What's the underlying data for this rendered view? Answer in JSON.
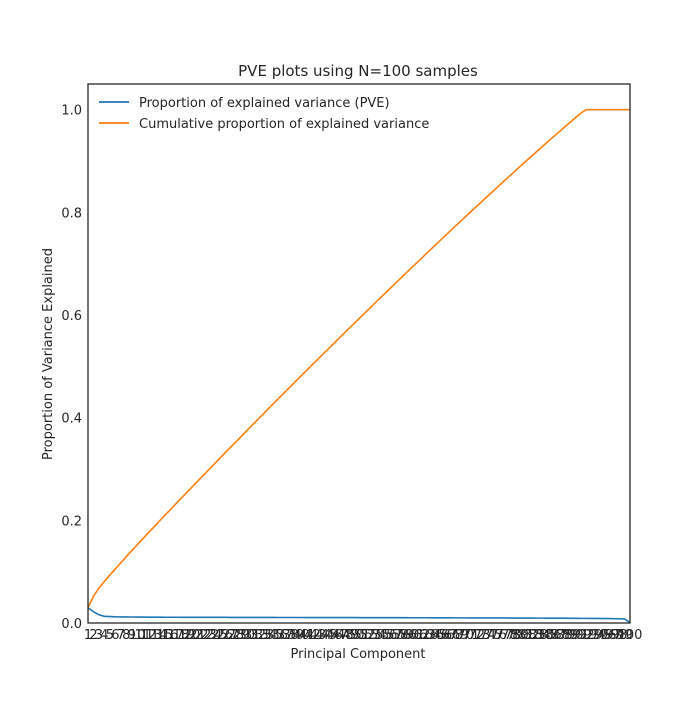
{
  "chart_data": {
    "type": "line",
    "title": "PVE plots using N=100 samples",
    "xlabel": "Principal Component",
    "ylabel": "Proportion of Variance Explained",
    "xlim": [
      1,
      100
    ],
    "ylim": [
      0,
      1.05
    ],
    "yticks": [
      0.0,
      0.2,
      0.4,
      0.6,
      0.8,
      1.0
    ],
    "ytick_labels": [
      "0.0",
      "0.2",
      "0.4",
      "0.6",
      "0.8",
      "1.0"
    ],
    "x": [
      1,
      2,
      3,
      4,
      5,
      6,
      7,
      8,
      9,
      10,
      11,
      12,
      13,
      14,
      15,
      16,
      17,
      18,
      19,
      20,
      21,
      22,
      23,
      24,
      25,
      26,
      27,
      28,
      29,
      30,
      31,
      32,
      33,
      34,
      35,
      36,
      37,
      38,
      39,
      40,
      41,
      42,
      43,
      44,
      45,
      46,
      47,
      48,
      49,
      50,
      51,
      52,
      53,
      54,
      55,
      56,
      57,
      58,
      59,
      60,
      61,
      62,
      63,
      64,
      65,
      66,
      67,
      68,
      69,
      70,
      71,
      72,
      73,
      74,
      75,
      76,
      77,
      78,
      79,
      80,
      81,
      82,
      83,
      84,
      85,
      86,
      87,
      88,
      89,
      90,
      91,
      92,
      93,
      94,
      95,
      96,
      97,
      98,
      99,
      100
    ],
    "legend_position": "upper-left",
    "grid": false,
    "series": [
      {
        "name": "Proportion of explained variance (PVE)",
        "color": "#1f77b4",
        "values": [
          0.03,
          0.022,
          0.016,
          0.013,
          0.0125,
          0.012,
          0.0119,
          0.0118,
          0.0117,
          0.0116,
          0.0115,
          0.0114,
          0.0113,
          0.0113,
          0.0112,
          0.0112,
          0.0112,
          0.0111,
          0.0111,
          0.0111,
          0.0111,
          0.011,
          0.011,
          0.011,
          0.011,
          0.011,
          0.0109,
          0.0109,
          0.0109,
          0.0109,
          0.0109,
          0.0108,
          0.0108,
          0.0108,
          0.0108,
          0.0107,
          0.0107,
          0.0107,
          0.0107,
          0.0107,
          0.0106,
          0.0106,
          0.0106,
          0.0106,
          0.0106,
          0.0105,
          0.0105,
          0.0105,
          0.0105,
          0.0105,
          0.0104,
          0.0104,
          0.0104,
          0.0104,
          0.0103,
          0.0103,
          0.0103,
          0.0103,
          0.0103,
          0.0102,
          0.0102,
          0.0102,
          0.0102,
          0.0101,
          0.0101,
          0.0101,
          0.0101,
          0.01,
          0.01,
          0.01,
          0.0099,
          0.0099,
          0.0099,
          0.0099,
          0.0098,
          0.0098,
          0.0098,
          0.0097,
          0.0097,
          0.0097,
          0.0096,
          0.0096,
          0.0095,
          0.0095,
          0.0094,
          0.0094,
          0.0093,
          0.0093,
          0.0092,
          0.0091,
          0.009,
          0.009,
          0.0089,
          0.0088,
          0.0087,
          0.0086,
          0.0085,
          0.0083,
          0.008,
          0.0008
        ]
      },
      {
        "name": "Cumulative proportion of explained variance",
        "color": "#ff7f0e",
        "values": [
          0.03,
          0.052,
          0.068,
          0.081,
          0.0935,
          0.1055,
          0.1174,
          0.1292,
          0.1409,
          0.1525,
          0.164,
          0.1754,
          0.1867,
          0.198,
          0.2092,
          0.2204,
          0.2316,
          0.2427,
          0.2538,
          0.2649,
          0.276,
          0.287,
          0.298,
          0.309,
          0.32,
          0.331,
          0.3419,
          0.3528,
          0.3637,
          0.3746,
          0.3855,
          0.3963,
          0.4071,
          0.4179,
          0.4287,
          0.4394,
          0.4501,
          0.4608,
          0.4715,
          0.4822,
          0.4928,
          0.5034,
          0.514,
          0.5246,
          0.5352,
          0.5457,
          0.5562,
          0.5667,
          0.5772,
          0.5877,
          0.5981,
          0.6085,
          0.6189,
          0.6293,
          0.6396,
          0.6499,
          0.6602,
          0.6705,
          0.6808,
          0.691,
          0.7012,
          0.7114,
          0.7216,
          0.7317,
          0.7418,
          0.7519,
          0.762,
          0.772,
          0.782,
          0.792,
          0.8019,
          0.8118,
          0.8217,
          0.8316,
          0.8414,
          0.8512,
          0.861,
          0.8707,
          0.8804,
          0.8901,
          0.8997,
          0.9093,
          0.9188,
          0.9283,
          0.9377,
          0.9471,
          0.9564,
          0.9657,
          0.9749,
          0.984,
          0.993,
          1.0,
          1.0,
          1.0,
          1.0,
          1.0,
          1.0,
          1.0,
          1.0,
          1.0
        ]
      }
    ]
  }
}
